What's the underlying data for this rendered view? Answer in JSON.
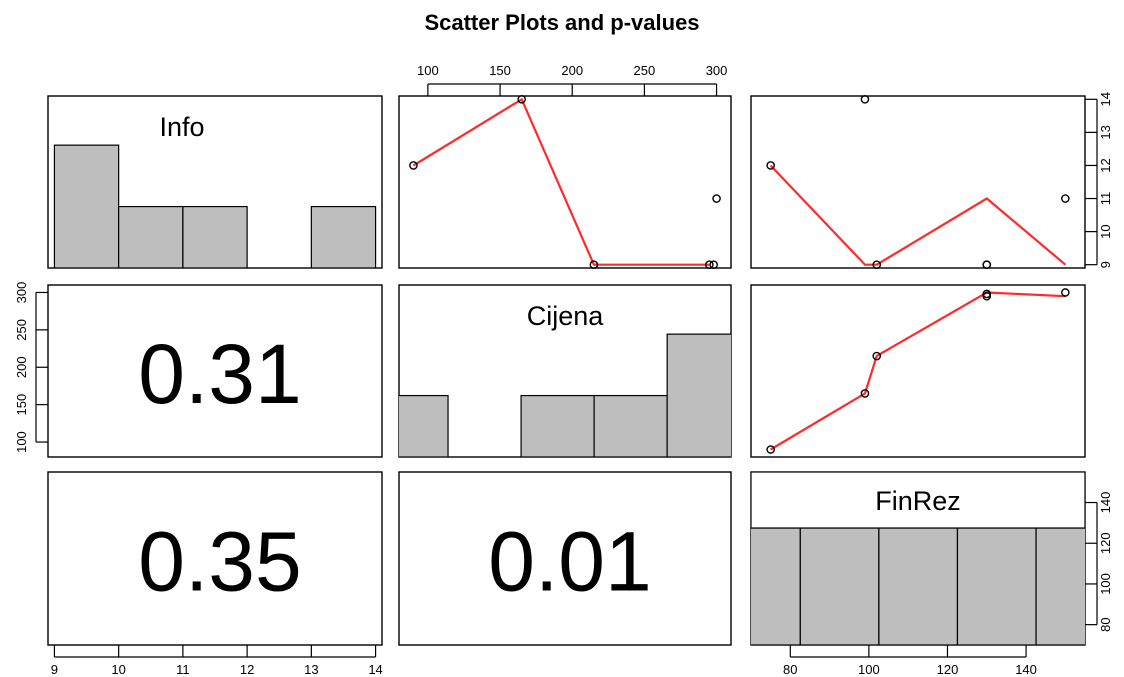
{
  "chart_data": {
    "type": "scatter",
    "title": "Scatter Plots and p-values",
    "variables": [
      "Info",
      "Cijena",
      "FinRez"
    ],
    "observations": {
      "Info": [
        12,
        14,
        9,
        9,
        11,
        9
      ],
      "Cijena": [
        90,
        165,
        215,
        295,
        300,
        298
      ],
      "FinRez": [
        75,
        99,
        102,
        130,
        150,
        130
      ]
    },
    "p_values": {
      "Cijena_vs_Info": "0.31",
      "FinRez_vs_Info": "0.35",
      "FinRez_vs_Cijena": "0.01"
    },
    "fit_lines": {
      "Cijena_vs_Info": {
        "x": [
          90,
          165,
          215,
          295
        ],
        "y": [
          12,
          14,
          9,
          9
        ]
      },
      "FinRez_vs_Info": {
        "x": [
          75,
          99,
          102,
          130,
          150
        ],
        "y": [
          12,
          9,
          9,
          11,
          9
        ]
      },
      "FinRez_vs_Cijena": {
        "x": [
          75,
          99,
          102,
          130,
          150
        ],
        "y": [
          90,
          165,
          215,
          300,
          295
        ]
      }
    },
    "histograms": {
      "Info": {
        "breaks": [
          9,
          10,
          11,
          12,
          13,
          14
        ],
        "counts": [
          2,
          1,
          1,
          0,
          1
        ]
      },
      "Cijena": {
        "breaks": [
          50,
          100,
          150,
          200,
          250,
          300
        ],
        "counts": [
          1,
          0,
          1,
          1,
          2
        ]
      },
      "FinRez": {
        "breaks": [
          60,
          80,
          100,
          120,
          140,
          160
        ],
        "counts": [
          1,
          1,
          1,
          1,
          1
        ]
      }
    },
    "axes": {
      "Info": {
        "ticks": [
          9,
          10,
          11,
          12,
          13,
          14
        ],
        "range": [
          8.9,
          14.1
        ]
      },
      "Cijena": {
        "ticks": [
          100,
          150,
          200,
          250,
          300
        ],
        "range": [
          80,
          310
        ]
      },
      "FinRez": {
        "ticks": [
          80,
          100,
          120,
          140
        ],
        "range": [
          70,
          155
        ],
        "hist_ticks": [
          80,
          100,
          120,
          140
        ]
      }
    },
    "colors": {
      "points": "#000000",
      "fit_line": "#ff2a2a",
      "bars": "#bebebe"
    }
  }
}
